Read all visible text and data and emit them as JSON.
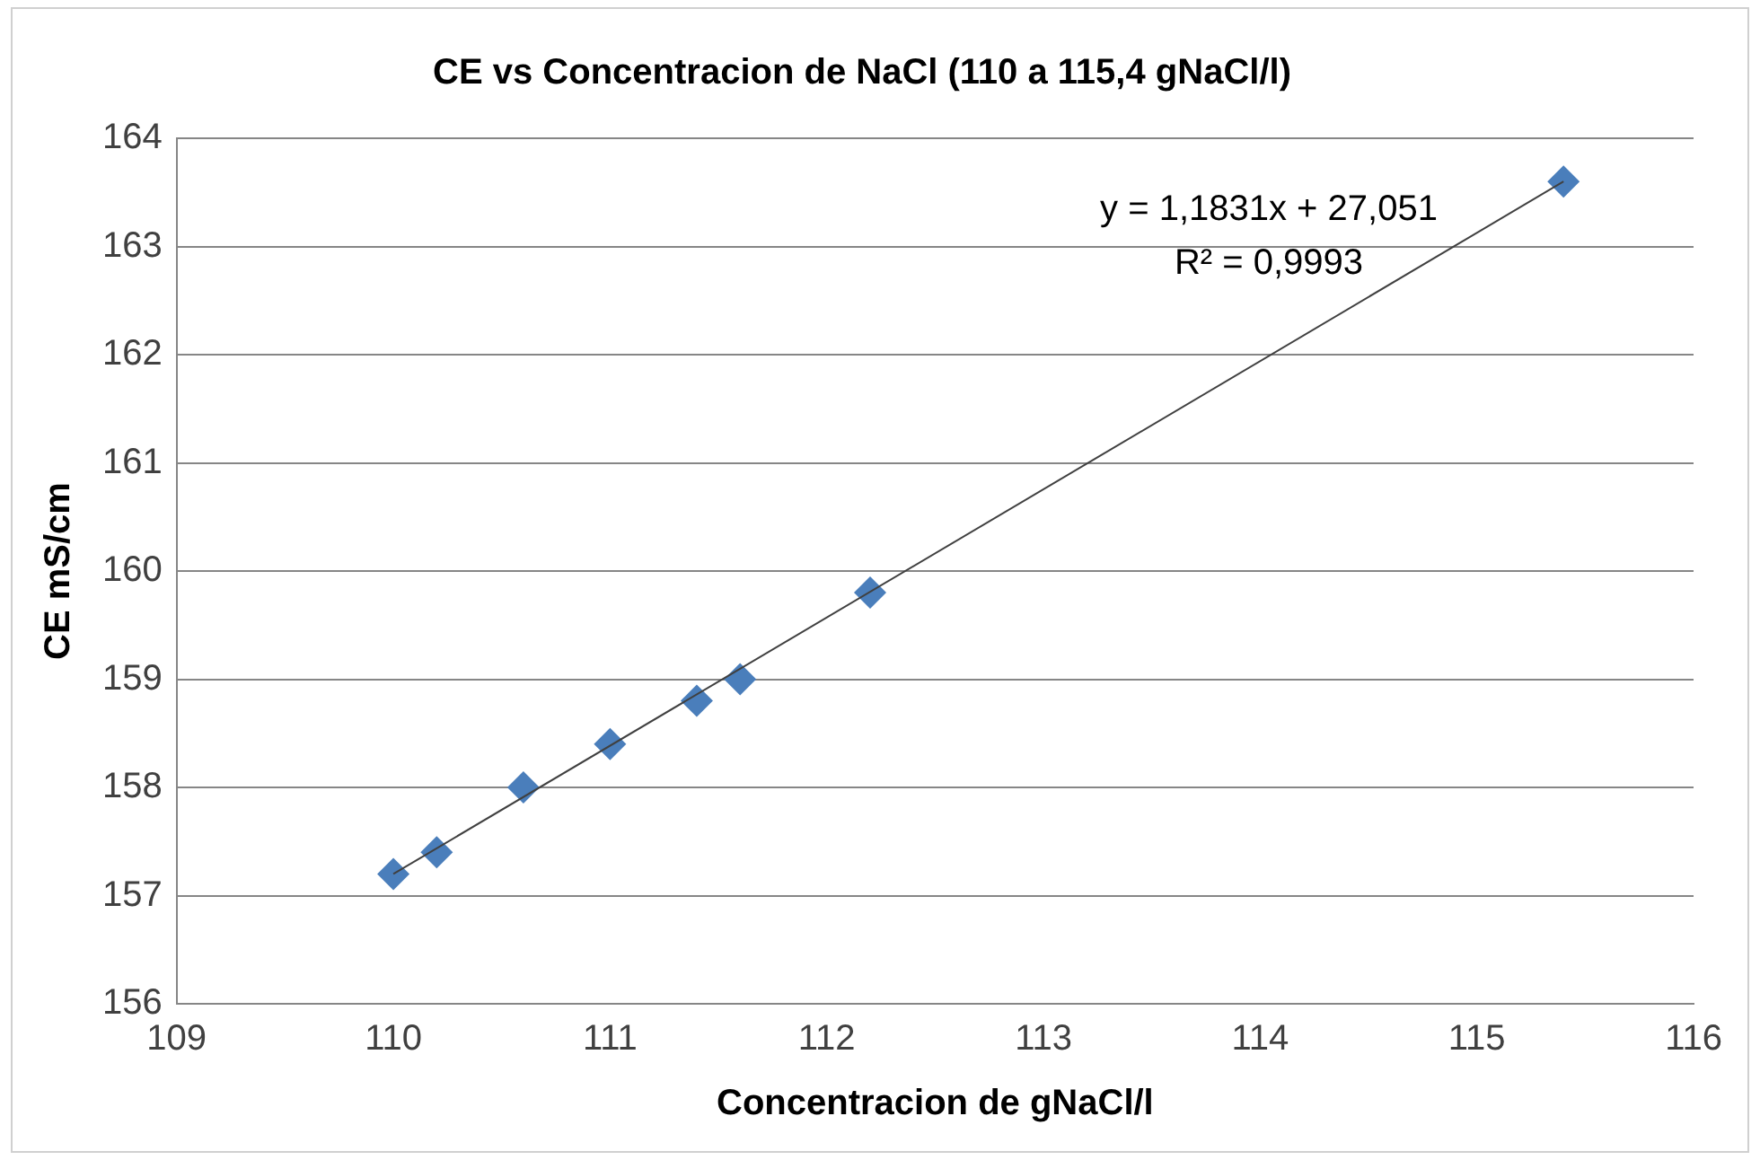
{
  "chart_data": {
    "type": "scatter",
    "title": "CE vs Concentracion de NaCl (110 a 115,4 gNaCl/l)",
    "xlabel": "Concentracion de gNaCl/l",
    "ylabel": "CE mS/cm",
    "x": [
      110,
      110.2,
      110.6,
      111,
      111.4,
      111.6,
      112.2,
      115.4
    ],
    "series": [
      {
        "type": "scatter",
        "color": "#4a7ebb",
        "marker": "diamond",
        "values": [
          157.2,
          157.4,
          158.0,
          158.4,
          158.8,
          159.0,
          159.8,
          163.6
        ]
      },
      {
        "type": "line",
        "color": "#404040",
        "marker": "none",
        "x": [
          110,
          115.4
        ],
        "values": [
          157.2,
          163.6
        ]
      }
    ],
    "xlim": [
      109,
      116
    ],
    "xticks": [
      109,
      110,
      111,
      112,
      113,
      114,
      115,
      116
    ],
    "ylim": [
      156,
      164
    ],
    "yticks": [
      156,
      157,
      158,
      159,
      160,
      161,
      162,
      163,
      164
    ],
    "grid": "y",
    "legend": false,
    "annotations": [
      "y = 1,1831x + 27,051",
      "R² = 0,9993"
    ]
  }
}
